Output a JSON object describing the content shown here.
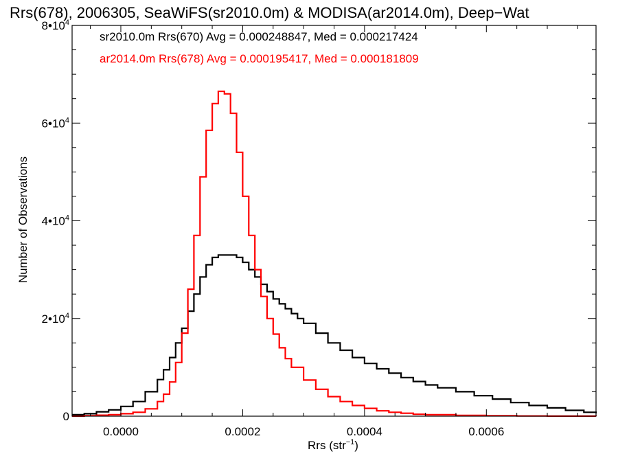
{
  "chart_data": {
    "type": "line",
    "title": "Rrs(678), 2006305, SeaWiFS(sr2010.0m) & MODISA(ar2014.0m), Deep−Wat",
    "xlabel": "Rrs (str",
    "xlabel_sup": "−1",
    "xlabel_end": ")",
    "ylabel": "Number of Observations",
    "xlim": [
      -8e-05,
      0.00078
    ],
    "ylim": [
      0,
      80000
    ],
    "x_ticks": [
      {
        "value": 0.0,
        "label": "0.0000"
      },
      {
        "value": 0.0002,
        "label": "0.0002"
      },
      {
        "value": 0.0004,
        "label": "0.0004"
      },
      {
        "value": 0.0006,
        "label": "0.0006"
      }
    ],
    "y_ticks": [
      {
        "value": 0,
        "label": "0",
        "sup": ""
      },
      {
        "value": 20000,
        "label": "2•10",
        "sup": "4"
      },
      {
        "value": 40000,
        "label": "4•10",
        "sup": "4"
      },
      {
        "value": 60000,
        "label": "6•10",
        "sup": "4"
      },
      {
        "value": 80000,
        "label": "8•10",
        "sup": "4"
      }
    ],
    "grid": false,
    "legend_position": "top-left",
    "annotations": [
      {
        "text": "sr2010.0m Rrs(670) Avg = 0.000248847, Med = 0.000217424",
        "color": "#000000"
      },
      {
        "text": "ar2014.0m Rrs(678) Avg = 0.000195417, Med = 0.000181809",
        "color": "#ff0000"
      }
    ],
    "series": [
      {
        "color": "#000000",
        "x": [
          -8e-05,
          -6e-05,
          -4e-05,
          -2e-05,
          0.0,
          2e-05,
          4e-05,
          6e-05,
          7e-05,
          8e-05,
          9e-05,
          0.0001,
          0.00011,
          0.00012,
          0.00013,
          0.00014,
          0.00015,
          0.00016,
          0.00017,
          0.00018,
          0.00019,
          0.0002,
          0.00021,
          0.00022,
          0.00023,
          0.00024,
          0.00025,
          0.00026,
          0.00027,
          0.00028,
          0.00029,
          0.0003,
          0.00032,
          0.00034,
          0.00036,
          0.00038,
          0.0004,
          0.00042,
          0.00044,
          0.00046,
          0.00048,
          0.0005,
          0.00052,
          0.00055,
          0.00058,
          0.00061,
          0.00064,
          0.00067,
          0.0007,
          0.00073,
          0.00076,
          0.00078
        ],
        "y": [
          300,
          500,
          900,
          1300,
          2000,
          3000,
          5000,
          7500,
          9500,
          12000,
          15000,
          18000,
          21500,
          25000,
          28500,
          31000,
          32500,
          33000,
          33000,
          33000,
          32500,
          31500,
          30000,
          28500,
          27000,
          25500,
          24000,
          23000,
          22000,
          21000,
          20000,
          19000,
          17000,
          15000,
          13500,
          12000,
          10800,
          9700,
          8800,
          7900,
          7100,
          6400,
          5800,
          5000,
          4200,
          3500,
          2800,
          2200,
          1700,
          1200,
          800,
          600
        ]
      },
      {
        "color": "#ff0000",
        "x": [
          -8e-05,
          -6e-05,
          -4e-05,
          -2e-05,
          0.0,
          2e-05,
          4e-05,
          6e-05,
          7e-05,
          8e-05,
          9e-05,
          0.0001,
          0.00011,
          0.00012,
          0.00013,
          0.00014,
          0.00015,
          0.00016,
          0.00017,
          0.00018,
          0.00019,
          0.0002,
          0.00021,
          0.00022,
          0.00023,
          0.00024,
          0.00025,
          0.00026,
          0.00027,
          0.00028,
          0.0003,
          0.00032,
          0.00034,
          0.00036,
          0.00038,
          0.0004,
          0.00042,
          0.00044,
          0.00046,
          0.00048,
          0.0005,
          0.00055,
          0.0006,
          0.00065,
          0.0007,
          0.00078
        ],
        "y": [
          0,
          100,
          200,
          300,
          500,
          800,
          1500,
          3000,
          4500,
          7000,
          11000,
          17000,
          26000,
          37000,
          49000,
          58500,
          64000,
          66500,
          66000,
          62000,
          54000,
          45000,
          37000,
          30000,
          24500,
          20000,
          16800,
          14000,
          11800,
          10000,
          7400,
          5500,
          4000,
          3000,
          2200,
          1600,
          1100,
          800,
          600,
          400,
          300,
          150,
          80,
          40,
          20,
          0
        ]
      }
    ]
  }
}
